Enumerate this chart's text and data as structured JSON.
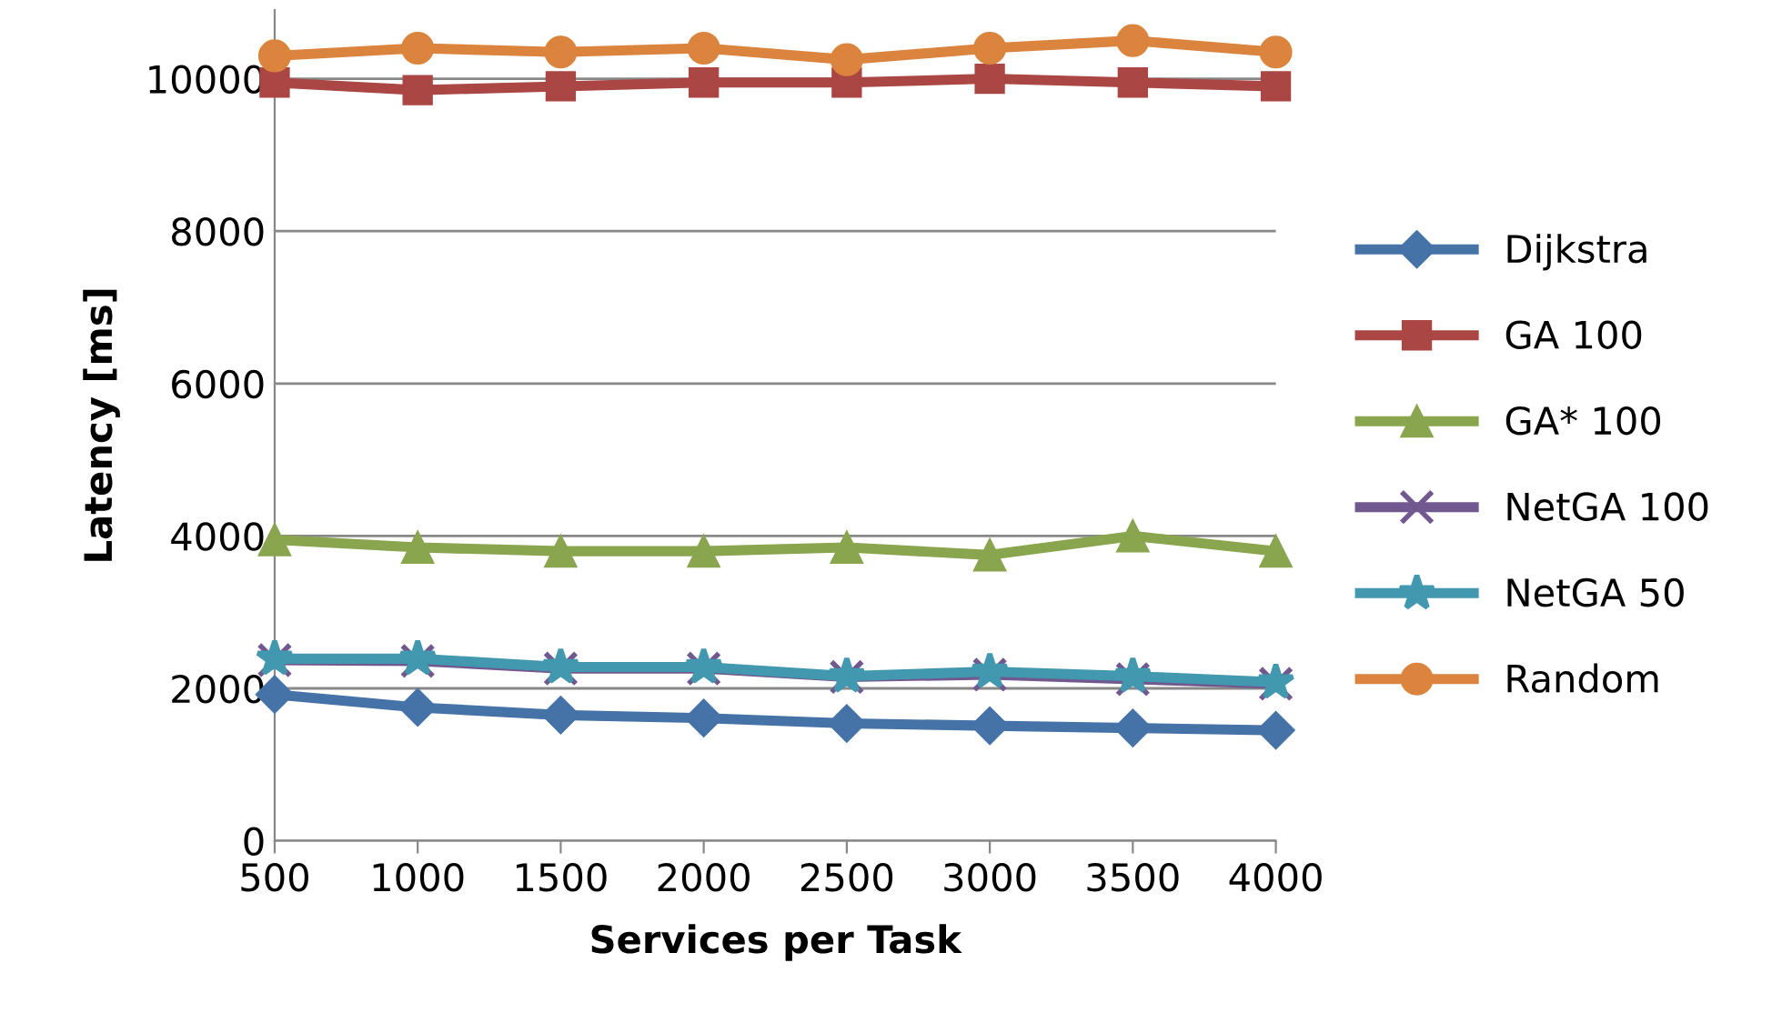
{
  "chart_data": {
    "type": "line",
    "xlabel": "Services per Task",
    "ylabel": "Latency [ms]",
    "x": [
      500,
      1000,
      1500,
      2000,
      2500,
      3000,
      3500,
      4000
    ],
    "xlim": [
      500,
      4000
    ],
    "xticks": [
      500,
      1000,
      1500,
      2000,
      2500,
      3000,
      3500,
      4000
    ],
    "ylim": [
      0,
      10900
    ],
    "yticks": [
      0,
      2000,
      4000,
      6000,
      8000,
      10000
    ],
    "grid": "y",
    "legend": "right",
    "line_style": "solid",
    "series": [
      {
        "name": "Dijkstra",
        "color": "#4572a7",
        "marker": "diamond",
        "values": [
          1920,
          1750,
          1650,
          1610,
          1540,
          1510,
          1480,
          1450
        ]
      },
      {
        "name": "GA 100",
        "color": "#aa4643",
        "marker": "square",
        "values": [
          9950,
          9850,
          9900,
          9950,
          9950,
          10000,
          9950,
          9900
        ]
      },
      {
        "name": "GA* 100",
        "color": "#89a54e",
        "marker": "triangle",
        "values": [
          3950,
          3850,
          3800,
          3800,
          3850,
          3750,
          4000,
          3800
        ]
      },
      {
        "name": "NetGA 100",
        "color": "#71588f",
        "marker": "cross",
        "values": [
          2370,
          2360,
          2260,
          2260,
          2150,
          2180,
          2120,
          2060
        ]
      },
      {
        "name": "NetGA 50",
        "color": "#4198af",
        "marker": "star",
        "values": [
          2390,
          2390,
          2280,
          2280,
          2160,
          2220,
          2160,
          2080
        ]
      },
      {
        "name": "Random",
        "color": "#db843d",
        "marker": "circle",
        "values": [
          10300,
          10400,
          10350,
          10400,
          10250,
          10400,
          10500,
          10350
        ]
      }
    ]
  }
}
